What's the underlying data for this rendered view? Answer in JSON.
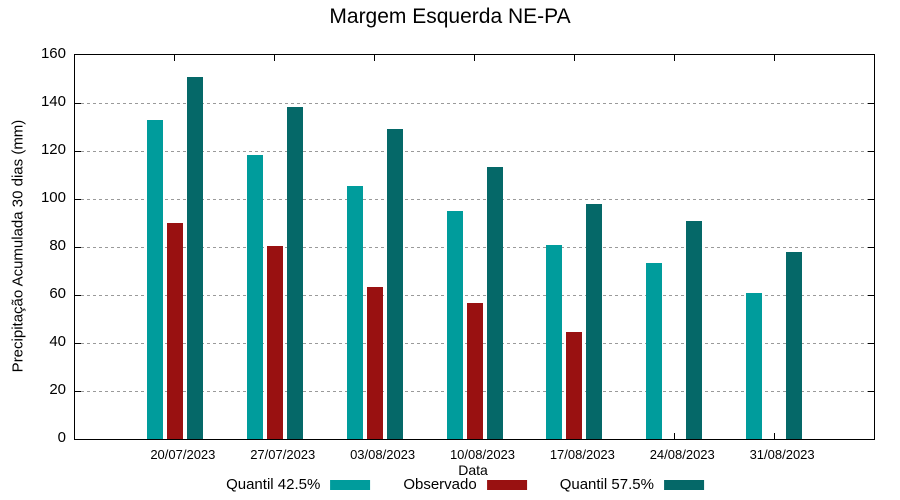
{
  "chart_data": {
    "type": "bar",
    "title": "Margem Esquerda NE-PA",
    "xlabel": "Data",
    "ylabel": "Precipitação Acumulada 30 dias (mm)",
    "ylim": [
      0,
      160
    ],
    "yticks": [
      0,
      20,
      40,
      60,
      80,
      100,
      120,
      140,
      160
    ],
    "grid": "horizontal-dotted",
    "legend_position": "bottom-center",
    "categories": [
      "20/07/2023",
      "27/07/2023",
      "03/08/2023",
      "10/08/2023",
      "17/08/2023",
      "24/08/2023",
      "31/08/2023"
    ],
    "series": [
      {
        "name": "Quantil 42.5%",
        "color": "#009C9C",
        "values": [
          133,
          118.5,
          105.5,
          95,
          81,
          73.5,
          61
        ]
      },
      {
        "name": "Observado",
        "color": "#991111",
        "values": [
          90,
          80.5,
          63.5,
          56.5,
          44.5,
          null,
          null
        ]
      },
      {
        "name": "Quantil 57.5%",
        "color": "#056868",
        "values": [
          151,
          138.5,
          129,
          113.5,
          98,
          91,
          78
        ]
      }
    ]
  },
  "colors": {
    "axis": "#000000",
    "grid": "#9A9A9A",
    "background": "#FFFFFF",
    "text": "#000000"
  }
}
